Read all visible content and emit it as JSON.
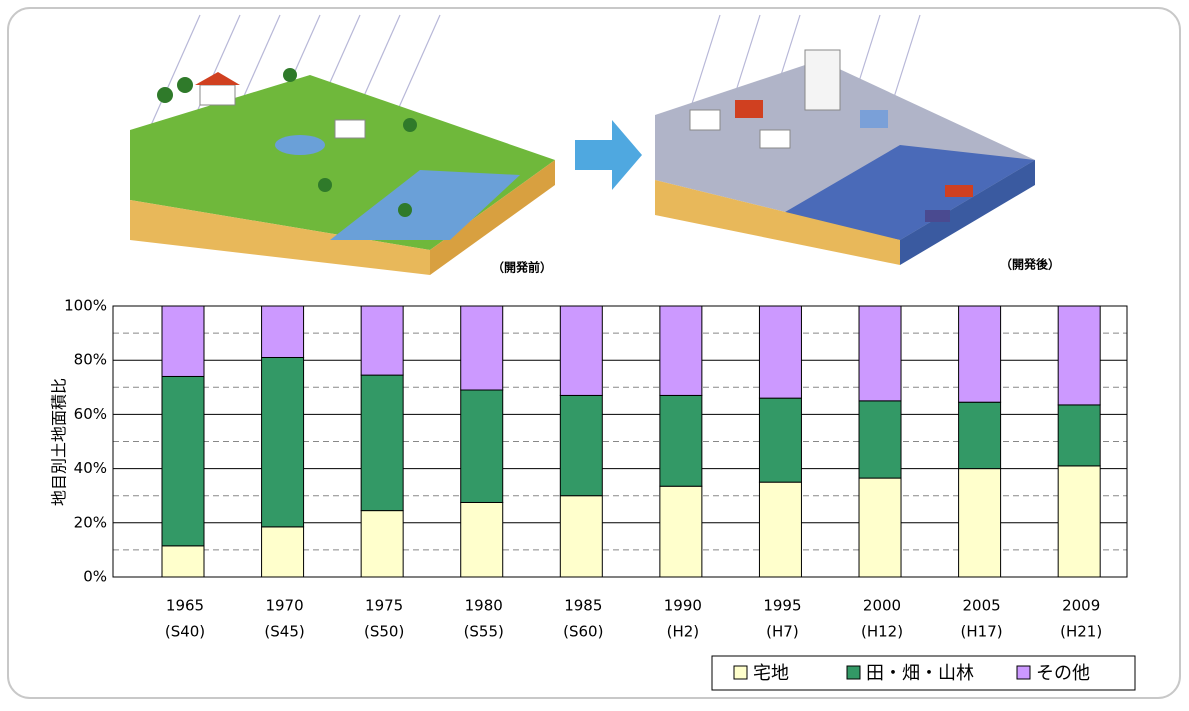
{
  "chart_data": {
    "type": "stacked_bar",
    "ylabel": "地目別土地面積比",
    "annotations": [
      "（開発前）",
      "（開発後）"
    ],
    "categories": [
      "1965",
      "1970",
      "1975",
      "1980",
      "1985",
      "1990",
      "1995",
      "2000",
      "2005",
      "2009"
    ],
    "subcategories": [
      "(S40)",
      "(S45)",
      "(S50)",
      "(S55)",
      "(S60)",
      "(H2)",
      "(H7)",
      "(H12)",
      "(H17)",
      "(H21)"
    ],
    "series": [
      {
        "name": "宅地",
        "color": "#ffffcc",
        "values": [
          11.5,
          18.5,
          24.5,
          27.5,
          30,
          33.5,
          35,
          36.5,
          40,
          41
        ]
      },
      {
        "name": "田・畑・山林",
        "color": "#339966",
        "values": [
          62.5,
          62.5,
          50,
          41.5,
          37,
          33.5,
          31,
          28.5,
          24.5,
          22.5
        ]
      },
      {
        "name": "その他",
        "color": "#cc99ff",
        "values": [
          26,
          19,
          25.5,
          31,
          33,
          33,
          34,
          35,
          35.5,
          36.5
        ]
      }
    ],
    "ylim": [
      0,
      100
    ],
    "yticks": [
      {
        "value": 0,
        "label": "0%"
      },
      {
        "value": 20,
        "label": "20%"
      },
      {
        "value": 40,
        "label": "40%"
      },
      {
        "value": 60,
        "label": "60%"
      },
      {
        "value": 80,
        "label": "80%"
      },
      {
        "value": 100,
        "label": "100%"
      }
    ],
    "minor_yticks": [
      10,
      30,
      50,
      70,
      90
    ],
    "grid": true,
    "legend": "bottom-right"
  }
}
